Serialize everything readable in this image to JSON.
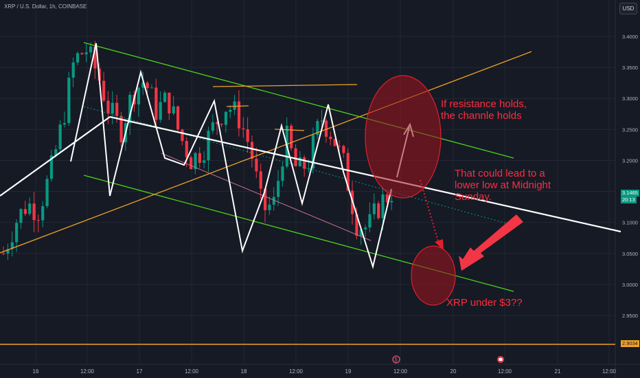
{
  "header": {
    "symbol_line": "XRP / U.S. Dollar, 1h, COINBASE"
  },
  "currency_button": "USD",
  "price_tags": {
    "current_price": "3.1465",
    "countdown": "20:13",
    "horizontal_level": "2.9034"
  },
  "annotations": {
    "note_resistance": [
      "If resistance holds,",
      "the channle holds"
    ],
    "note_lower_low": [
      "That could lead to a",
      "lower low at Midnight",
      "Sunday."
    ],
    "note_question": "XRP under $3??"
  },
  "event_icons": [
    "dividend-icon",
    "earnings-icon"
  ],
  "colors": {
    "background": "#161a25",
    "grid": "#232733",
    "bull_candle": "#089981",
    "bear_candle": "#f23645",
    "channel_line": "#4cd31a",
    "orange_line": "#f0a227",
    "white_line": "#ffffff",
    "annotation_red": "#ff2d3c"
  },
  "chart_data": {
    "type": "candlestick",
    "title": "XRP / U.S. Dollar, 1h, COINBASE",
    "x_tick_labels": [
      "16",
      "12:00",
      "17",
      "12:00",
      "18",
      "12:00",
      "19",
      "12:00",
      "20",
      "12:00",
      "21",
      "12:00"
    ],
    "y_tick_labels": [
      "3.4000",
      "3.3500",
      "3.3000",
      "3.2500",
      "3.2000",
      "3.1500",
      "3.1000",
      "3.0500",
      "3.0000",
      "2.9500"
    ],
    "ylim": [
      2.9,
      3.42
    ],
    "last_price": 3.1465,
    "horizontal_level": 2.9034,
    "close_path": [
      3.05,
      3.1,
      3.13,
      3.12,
      3.18,
      3.26,
      3.36,
      3.38,
      3.34,
      3.28,
      3.25,
      3.31,
      3.33,
      3.28,
      3.3,
      3.24,
      3.2,
      3.22,
      3.26,
      3.29,
      3.27,
      3.22,
      3.12,
      3.13,
      3.24,
      3.18,
      3.2,
      3.27,
      3.24,
      3.19,
      3.1,
      3.09,
      3.13,
      3.15
    ],
    "grid": true
  }
}
